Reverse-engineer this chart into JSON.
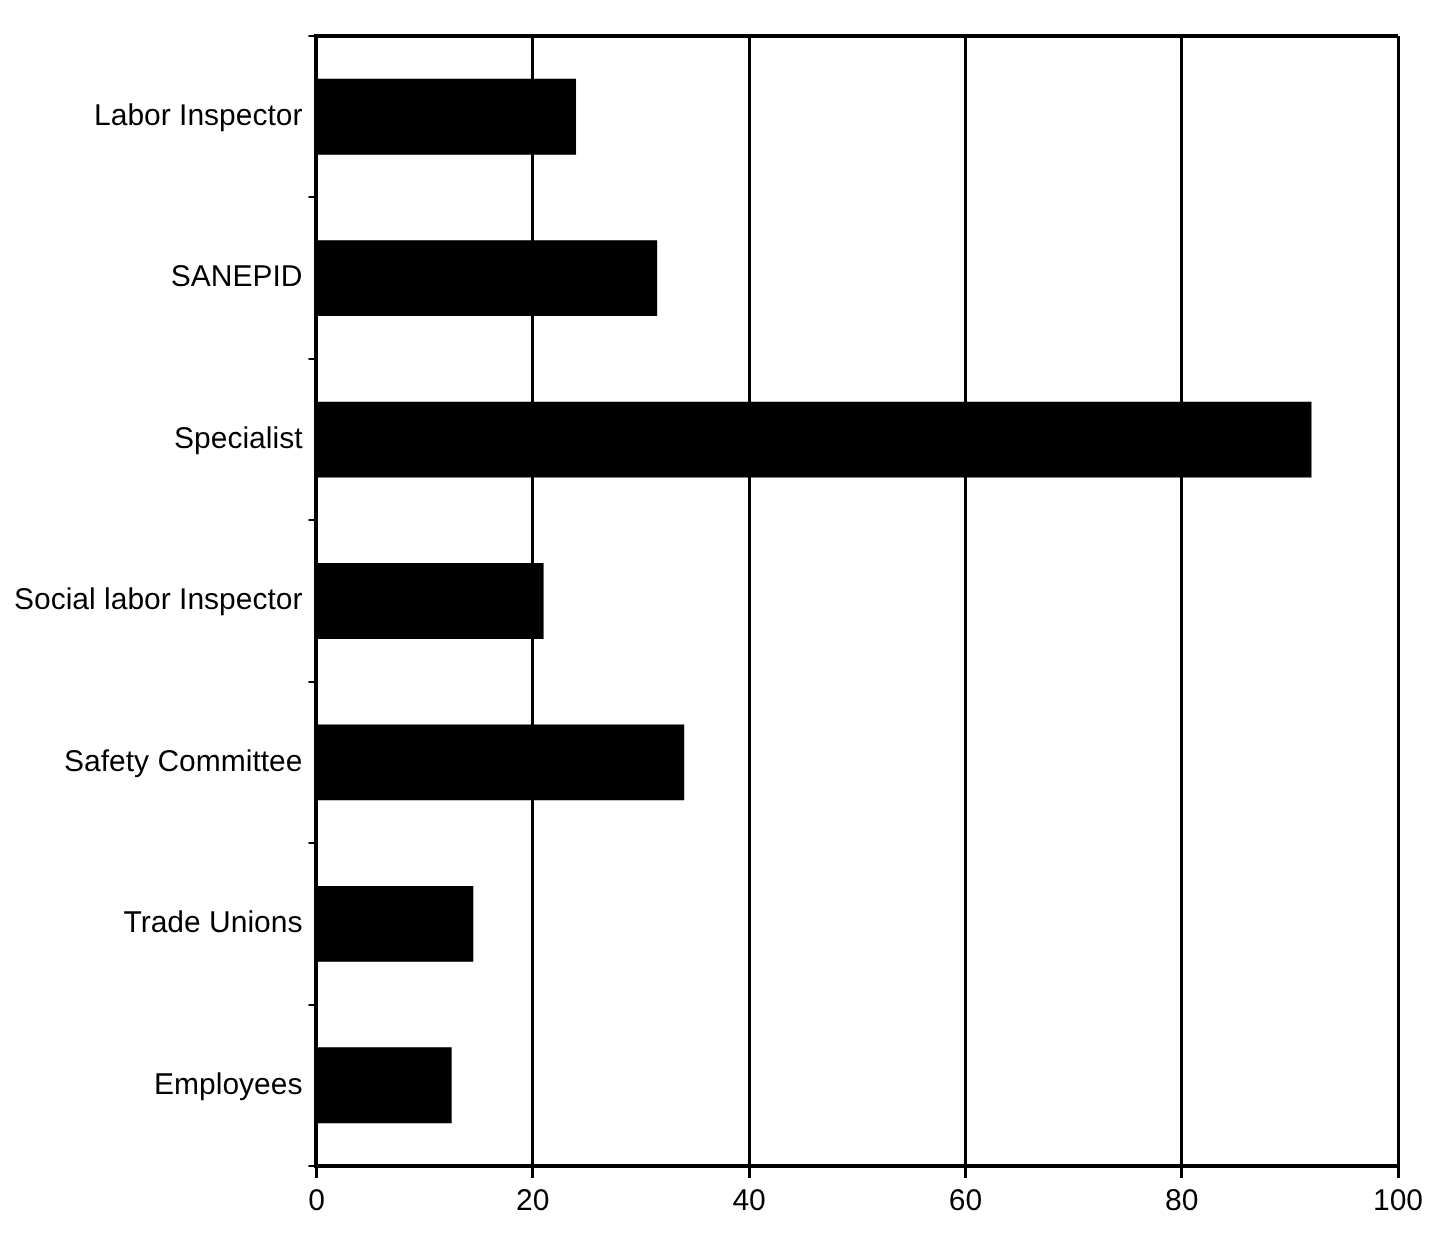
{
  "chart_data": {
    "type": "bar",
    "orientation": "horizontal",
    "categories": [
      "Labor Inspector",
      "SANEPID",
      "Specialist",
      "Social labor Inspector",
      "Safety Committee",
      "Trade Unions",
      "Employees"
    ],
    "values": [
      24,
      31.5,
      92,
      21,
      34,
      14.5,
      12.5
    ],
    "color": "#000000",
    "xlim": [
      0,
      100
    ],
    "xticks": [
      0,
      20,
      40,
      60,
      80,
      100
    ],
    "grid": "x",
    "legend": false
  }
}
